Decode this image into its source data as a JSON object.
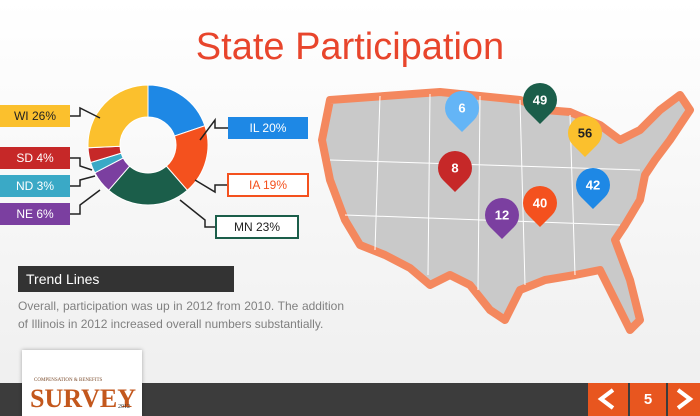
{
  "title": "State Participation",
  "chart_data": {
    "type": "donut",
    "categories": [
      "IL",
      "IA",
      "MN",
      "NE",
      "ND",
      "SD",
      "WI"
    ],
    "values": [
      20,
      19,
      23,
      6,
      3,
      4,
      26
    ],
    "value_labels": [
      "IL 20%",
      "IA 19%",
      "MN 23%",
      "NE 6%",
      "ND 3%",
      "SD 4%",
      "WI 26%"
    ],
    "colors": [
      "#1e88e5",
      "#f4511e",
      "#1b5e4a",
      "#7b3fa0",
      "#3aa9c6",
      "#c62828",
      "#fbc02d"
    ]
  },
  "map": {
    "pins": [
      {
        "label": "6",
        "color": "#64b5f6"
      },
      {
        "label": "49",
        "color": "#1b5e4a"
      },
      {
        "label": "56",
        "color": "#fbc02d"
      },
      {
        "label": "8",
        "color": "#c62828"
      },
      {
        "label": "42",
        "color": "#1e88e5"
      },
      {
        "label": "40",
        "color": "#f4511e"
      },
      {
        "label": "12",
        "color": "#7b3fa0"
      }
    ]
  },
  "trend": {
    "heading": "Trend Lines",
    "text": "Overall, participation was up in 2012 from 2010.  The addition of Illinois in 2012 increased overall numbers substantially."
  },
  "footer": {
    "logo_top": "COMPENSATION & BENEFITS",
    "logo_main": "SURVEY",
    "logo_year": "2012",
    "page": "5"
  }
}
